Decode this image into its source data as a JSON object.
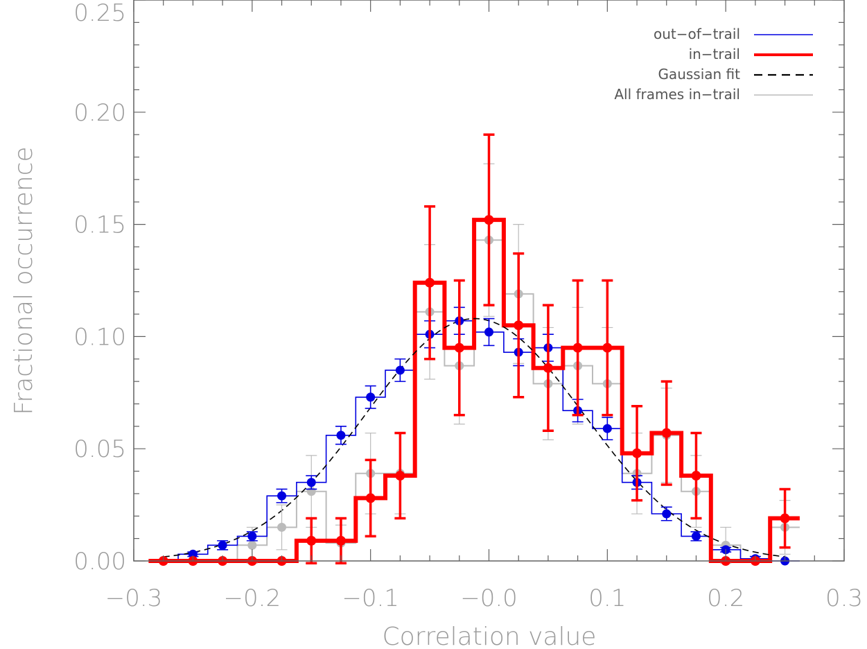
{
  "chart_data": {
    "type": "histogram",
    "xlabel": "Correlation value",
    "ylabel": "Fractional occurrence",
    "xlim": [
      -0.3,
      0.3
    ],
    "ylim": [
      0.0,
      0.25
    ],
    "x_ticks": [
      -0.3,
      -0.2,
      -0.1,
      0.0,
      0.1,
      0.2,
      0.3
    ],
    "x_tick_labels": [
      "−0.3",
      "−0.2",
      "−0.1",
      "−0.0",
      "0.1",
      "0.2",
      "0.3"
    ],
    "y_ticks": [
      0.0,
      0.05,
      0.1,
      0.15,
      0.2,
      0.25
    ],
    "y_tick_labels": [
      "0.00",
      "0.05",
      "0.10",
      "0.15",
      "0.20",
      "0.25"
    ],
    "legend": [
      {
        "label": "out−of−trail",
        "color": "#0000e0",
        "style": "solid-thin"
      },
      {
        "label": "in−trail",
        "color": "#ff0000",
        "style": "solid-thick"
      },
      {
        "label": "Gaussian fit",
        "color": "#000000",
        "style": "dashed"
      },
      {
        "label": "All frames in−trail",
        "color": "#bbbbbb",
        "style": "solid-thin"
      }
    ],
    "bin_width": 0.025,
    "bin_centers": [
      -0.275,
      -0.25,
      -0.225,
      -0.2,
      -0.175,
      -0.15,
      -0.125,
      -0.1,
      -0.075,
      -0.05,
      -0.025,
      0.0,
      0.025,
      0.05,
      0.075,
      0.1,
      0.125,
      0.15,
      0.175,
      0.2,
      0.225,
      0.25
    ],
    "series": [
      {
        "name": "All frames in−trail",
        "color": "#bbbbbb",
        "values": [
          0.0,
          0.0,
          0.0,
          0.007,
          0.015,
          0.031,
          0.008,
          0.039,
          0.039,
          0.111,
          0.087,
          0.143,
          0.119,
          0.079,
          0.087,
          0.079,
          0.039,
          0.056,
          0.031,
          0.007,
          0.0,
          0.015
        ],
        "errors": [
          0.0,
          0.0,
          0.0,
          0.008,
          0.01,
          0.016,
          0.008,
          0.018,
          0.018,
          0.03,
          0.026,
          0.034,
          0.031,
          0.025,
          0.026,
          0.025,
          0.018,
          0.021,
          0.016,
          0.008,
          0.0,
          0.012
        ]
      },
      {
        "name": "out−of−trail",
        "color": "#0000e0",
        "values": [
          0.0,
          0.003,
          0.007,
          0.011,
          0.029,
          0.035,
          0.056,
          0.073,
          0.085,
          0.101,
          0.107,
          0.102,
          0.093,
          0.095,
          0.067,
          0.059,
          0.035,
          0.021,
          0.011,
          0.005,
          0.001,
          0.0
        ],
        "errors": [
          0.0,
          0.001,
          0.002,
          0.002,
          0.003,
          0.003,
          0.004,
          0.005,
          0.005,
          0.006,
          0.006,
          0.006,
          0.006,
          0.006,
          0.005,
          0.005,
          0.003,
          0.003,
          0.002,
          0.001,
          0.001,
          0.0
        ]
      },
      {
        "name": "in−trail",
        "color": "#ff0000",
        "values": [
          0.0,
          0.0,
          0.0,
          0.0,
          0.0,
          0.009,
          0.009,
          0.028,
          0.038,
          0.124,
          0.095,
          0.152,
          0.105,
          0.086,
          0.095,
          0.095,
          0.048,
          0.057,
          0.038,
          0.0,
          0.0,
          0.019
        ],
        "errors": [
          0.0,
          0.0,
          0.0,
          0.0,
          0.0,
          0.01,
          0.01,
          0.017,
          0.019,
          0.034,
          0.03,
          0.038,
          0.032,
          0.028,
          0.03,
          0.03,
          0.021,
          0.023,
          0.019,
          0.0,
          0.0,
          0.013
        ]
      }
    ],
    "gaussian_fit": {
      "name": "Gaussian fit",
      "amplitude": 0.108,
      "mean": -0.012,
      "sigma": 0.092
    }
  }
}
